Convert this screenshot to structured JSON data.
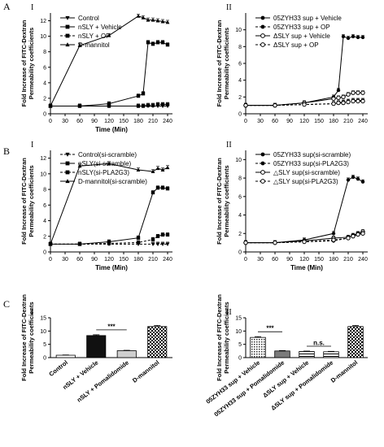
{
  "panels": {
    "A": "A",
    "B": "B",
    "C": "C"
  },
  "chart_data": [
    {
      "id": "A-I",
      "type": "line",
      "panel_label": "A",
      "sub_label": "I",
      "xlabel": "Time (Min)",
      "ylabel_lines": [
        "Fold Increase of FITC-Dextran",
        "Permeability coefficients"
      ],
      "xlim": [
        0,
        250
      ],
      "ylim": [
        0,
        13
      ],
      "xticks": [
        0,
        30,
        60,
        90,
        120,
        150,
        180,
        210,
        240
      ],
      "yticks": [
        0,
        2,
        4,
        6,
        8,
        10,
        12
      ],
      "legend_position": "top-left",
      "series": [
        {
          "name": "Control",
          "marker": "tri-down",
          "dash": false,
          "x": [
            0,
            60,
            120,
            180,
            190,
            200,
            210,
            220,
            230,
            240
          ],
          "y": [
            1,
            1,
            1,
            1,
            1,
            1,
            1,
            1,
            1,
            1
          ]
        },
        {
          "name": "nSLY + Vehicle",
          "marker": "square",
          "dash": false,
          "x": [
            0,
            60,
            120,
            180,
            190,
            200,
            210,
            220,
            230,
            240
          ],
          "y": [
            1,
            1,
            1.3,
            2.3,
            2.6,
            9.2,
            9.0,
            9.2,
            9.2,
            8.9
          ]
        },
        {
          "name": "nSLY + OP",
          "marker": "square",
          "dash": true,
          "x": [
            0,
            60,
            120,
            180,
            190,
            200,
            210,
            220,
            230,
            240
          ],
          "y": [
            1,
            1,
            1,
            1,
            1,
            1.1,
            1.1,
            1.2,
            1.2,
            1.2
          ]
        },
        {
          "name": "D-mannitol",
          "marker": "triangle",
          "dash": false,
          "x": [
            0,
            60,
            120,
            180,
            190,
            200,
            210,
            220,
            230,
            240
          ],
          "y": [
            1,
            8.8,
            10.1,
            12.6,
            12.4,
            12.1,
            12.1,
            12.0,
            11.9,
            11.8
          ]
        }
      ]
    },
    {
      "id": "A-II",
      "type": "line",
      "sub_label": "II",
      "ylabel_lines": [
        "Fold Increase of FITC-Dextran",
        "Permeability coefficients"
      ],
      "xlim": [
        0,
        250
      ],
      "ylim": [
        0,
        12
      ],
      "xticks": [
        0,
        30,
        60,
        90,
        120,
        150,
        180,
        210,
        240
      ],
      "yticks": [
        0,
        2,
        4,
        6,
        8,
        10
      ],
      "legend_position": "top-left",
      "series": [
        {
          "name": "05ZYH33 sup + Vehicle",
          "marker": "circle-filled",
          "dash": false,
          "x": [
            0,
            60,
            120,
            180,
            190,
            200,
            210,
            220,
            230,
            240
          ],
          "y": [
            1,
            1,
            1.3,
            2.0,
            2.8,
            9.2,
            9.0,
            9.2,
            9.1,
            9.1
          ]
        },
        {
          "name": "05ZYH33 sup + OP",
          "marker": "circle-filled",
          "dash": true,
          "x": [
            0,
            60,
            120,
            180,
            190,
            200,
            210,
            220,
            230,
            240
          ],
          "y": [
            1,
            1,
            1.1,
            1.2,
            1.3,
            1.4,
            1.5,
            1.6,
            1.6,
            1.6
          ]
        },
        {
          "name": "ΔSLY sup + Vehicle",
          "marker": "circle-open",
          "dash": false,
          "x": [
            0,
            60,
            120,
            180,
            190,
            200,
            210,
            220,
            230,
            240
          ],
          "y": [
            1,
            1,
            1.3,
            1.8,
            1.9,
            2.0,
            2.3,
            2.5,
            2.5,
            2.5
          ]
        },
        {
          "name": "ΔSLY sup + OP",
          "marker": "circle-open",
          "dash": true,
          "x": [
            0,
            60,
            120,
            180,
            190,
            200,
            210,
            220,
            230,
            240
          ],
          "y": [
            1,
            1,
            1.1,
            1.2,
            1.3,
            1.3,
            1.4,
            1.5,
            1.5,
            1.5
          ]
        }
      ]
    },
    {
      "id": "B-I",
      "type": "line",
      "panel_label": "B",
      "sub_label": "I",
      "xlabel": "Time (Min)",
      "ylabel_lines": [
        "Fold Increase of FITC-Dextran",
        "Permeability coefficients"
      ],
      "xlim": [
        0,
        250
      ],
      "ylim": [
        0,
        13
      ],
      "xticks": [
        0,
        30,
        60,
        90,
        120,
        150,
        180,
        210,
        240
      ],
      "yticks": [
        0,
        2,
        4,
        6,
        8,
        10,
        12
      ],
      "legend_position": "top-left",
      "series": [
        {
          "name": "Control(si-scramble)",
          "marker": "tri-down",
          "dash": true,
          "x": [
            0,
            60,
            120,
            180,
            210,
            220,
            230,
            240
          ],
          "y": [
            1,
            1,
            1,
            1,
            1,
            1,
            1,
            1
          ]
        },
        {
          "name": "nSLY(si-scramble)",
          "marker": "square",
          "dash": false,
          "x": [
            0,
            60,
            120,
            180,
            210,
            220,
            230,
            240
          ],
          "y": [
            1,
            1,
            1.3,
            1.8,
            7.6,
            8.2,
            8.2,
            8.1
          ]
        },
        {
          "name": "nSLY(si-PLA2G3)",
          "marker": "square",
          "dash": true,
          "x": [
            0,
            60,
            120,
            180,
            210,
            220,
            230,
            240
          ],
          "y": [
            1,
            1,
            1.1,
            1.2,
            1.6,
            2.0,
            2.2,
            2.2
          ]
        },
        {
          "name": "D-mannitol(si-scramble)",
          "marker": "triangle",
          "dash": false,
          "x": [
            0,
            60,
            120,
            180,
            210,
            220,
            230,
            240
          ],
          "y": [
            1,
            11.0,
            11.3,
            10.5,
            10.3,
            10.7,
            10.5,
            10.8
          ]
        }
      ]
    },
    {
      "id": "B-II",
      "type": "line",
      "sub_label": "II",
      "xlabel": "Time (Min)",
      "ylabel_lines": [
        "Fold Increase of FITC-Dextran",
        "Permeability coefficients"
      ],
      "xlim": [
        0,
        250
      ],
      "ylim": [
        0,
        11
      ],
      "xticks": [
        0,
        30,
        60,
        90,
        120,
        150,
        180,
        210,
        240
      ],
      "yticks": [
        0,
        2,
        4,
        6,
        8,
        10
      ],
      "legend_position": "top-left",
      "series": [
        {
          "name": "05ZYH33 sup(si-scramble)",
          "marker": "circle-filled",
          "dash": false,
          "x": [
            0,
            60,
            120,
            180,
            210,
            220,
            230,
            240
          ],
          "y": [
            1,
            1,
            1.3,
            2.0,
            7.8,
            8.1,
            7.9,
            7.6
          ]
        },
        {
          "name": "05ZYH33 sup(si-PLA2G3)",
          "marker": "circle-filled",
          "dash": true,
          "x": [
            0,
            60,
            120,
            180,
            210,
            220,
            230,
            240
          ],
          "y": [
            1,
            1,
            1.1,
            1.2,
            1.5,
            1.7,
            1.9,
            2.1
          ]
        },
        {
          "name": "△SLY sup(si-scramble)",
          "marker": "circle-open",
          "dash": false,
          "x": [
            0,
            60,
            120,
            180,
            210,
            220,
            230,
            240
          ],
          "y": [
            1,
            1,
            1.2,
            1.5,
            1.6,
            1.8,
            2.0,
            2.2
          ]
        },
        {
          "name": "△SLY sup(si-PLA2G3)",
          "marker": "circle-open",
          "dash": true,
          "x": [
            0,
            60,
            120,
            180,
            210,
            220,
            230,
            240
          ],
          "y": [
            1,
            1,
            1.1,
            1.3,
            1.5,
            1.7,
            1.9,
            2.0
          ]
        }
      ]
    },
    {
      "id": "C-I",
      "type": "bar",
      "panel_label": "C",
      "sub_label": "I",
      "ylabel_lines": [
        "Fold Increase of FITC-Dextran",
        "Permeability coefficients"
      ],
      "ylim": [
        0,
        15
      ],
      "yticks": [
        0,
        5,
        10,
        15
      ],
      "categories": [
        "Control",
        "nSLY + Vehicle",
        "nSLY + Pomalidomide",
        "D-mannitol"
      ],
      "values": [
        0.9,
        8.3,
        2.6,
        11.7
      ],
      "errors": [
        0.1,
        0.3,
        0.15,
        0.4
      ],
      "fills": [
        "white",
        "black",
        "lightgray",
        "checker"
      ],
      "significance": [
        {
          "from": 1,
          "to": 2,
          "label": "***"
        }
      ]
    },
    {
      "id": "C-II",
      "type": "bar",
      "sub_label": "II",
      "ylabel_lines": [
        "Fold Increase of FITC-Dextran",
        "Permeability coefficients"
      ],
      "ylim": [
        0,
        15
      ],
      "yticks": [
        0,
        5,
        10,
        15
      ],
      "categories": [
        "05ZYH33 sup + Vehicle",
        "05ZYH33 sup + Pomalidomide",
        "ΔSLY sup + Vehicle",
        "ΔSLY sup + Pomalidomide",
        "D-mannitol"
      ],
      "values": [
        7.6,
        2.5,
        2.3,
        2.2,
        11.7
      ],
      "errors": [
        0.3,
        0.15,
        0.15,
        0.15,
        0.4
      ],
      "fills": [
        "dots",
        "darkgray",
        "hstripe",
        "hstripe",
        "checker"
      ],
      "significance": [
        {
          "from": 0,
          "to": 1,
          "label": "***"
        },
        {
          "from": 2,
          "to": 3,
          "label": "n.s."
        }
      ]
    }
  ]
}
